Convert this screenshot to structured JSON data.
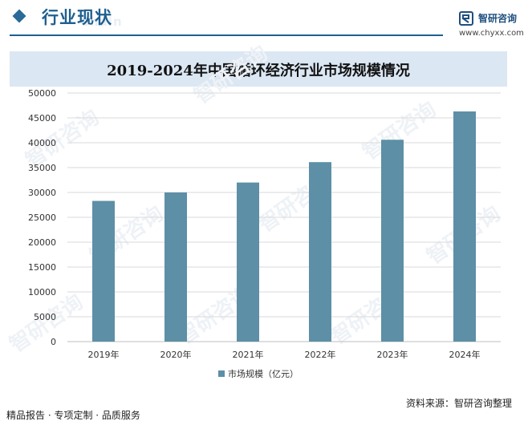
{
  "header": {
    "section_title": "行业现状",
    "ghost_text": "Chain"
  },
  "brand": {
    "name": "智研咨询",
    "url": "www.chyxx.com",
    "watermark": "智研咨询"
  },
  "chart_data": {
    "type": "bar",
    "title": "2019-2024年中国循环经济行业市场规模情况",
    "categories": [
      "2019年",
      "2020年",
      "2021年",
      "2022年",
      "2023年",
      "2024年"
    ],
    "series": [
      {
        "name": "市场规模（亿元）",
        "values": [
          28300,
          30000,
          32000,
          36100,
          40600,
          46300
        ],
        "color": "#5d8fa6"
      }
    ],
    "xlabel": "",
    "ylabel": "",
    "ylim": [
      0,
      50000
    ],
    "yticks": [
      0,
      5000,
      10000,
      15000,
      20000,
      25000,
      30000,
      35000,
      40000,
      45000,
      50000
    ],
    "grid": true,
    "legend_position": "bottom"
  },
  "footer": {
    "left": "精品报告 · 专项定制 · 品质服务",
    "source": "资料来源：智研咨询整理"
  }
}
